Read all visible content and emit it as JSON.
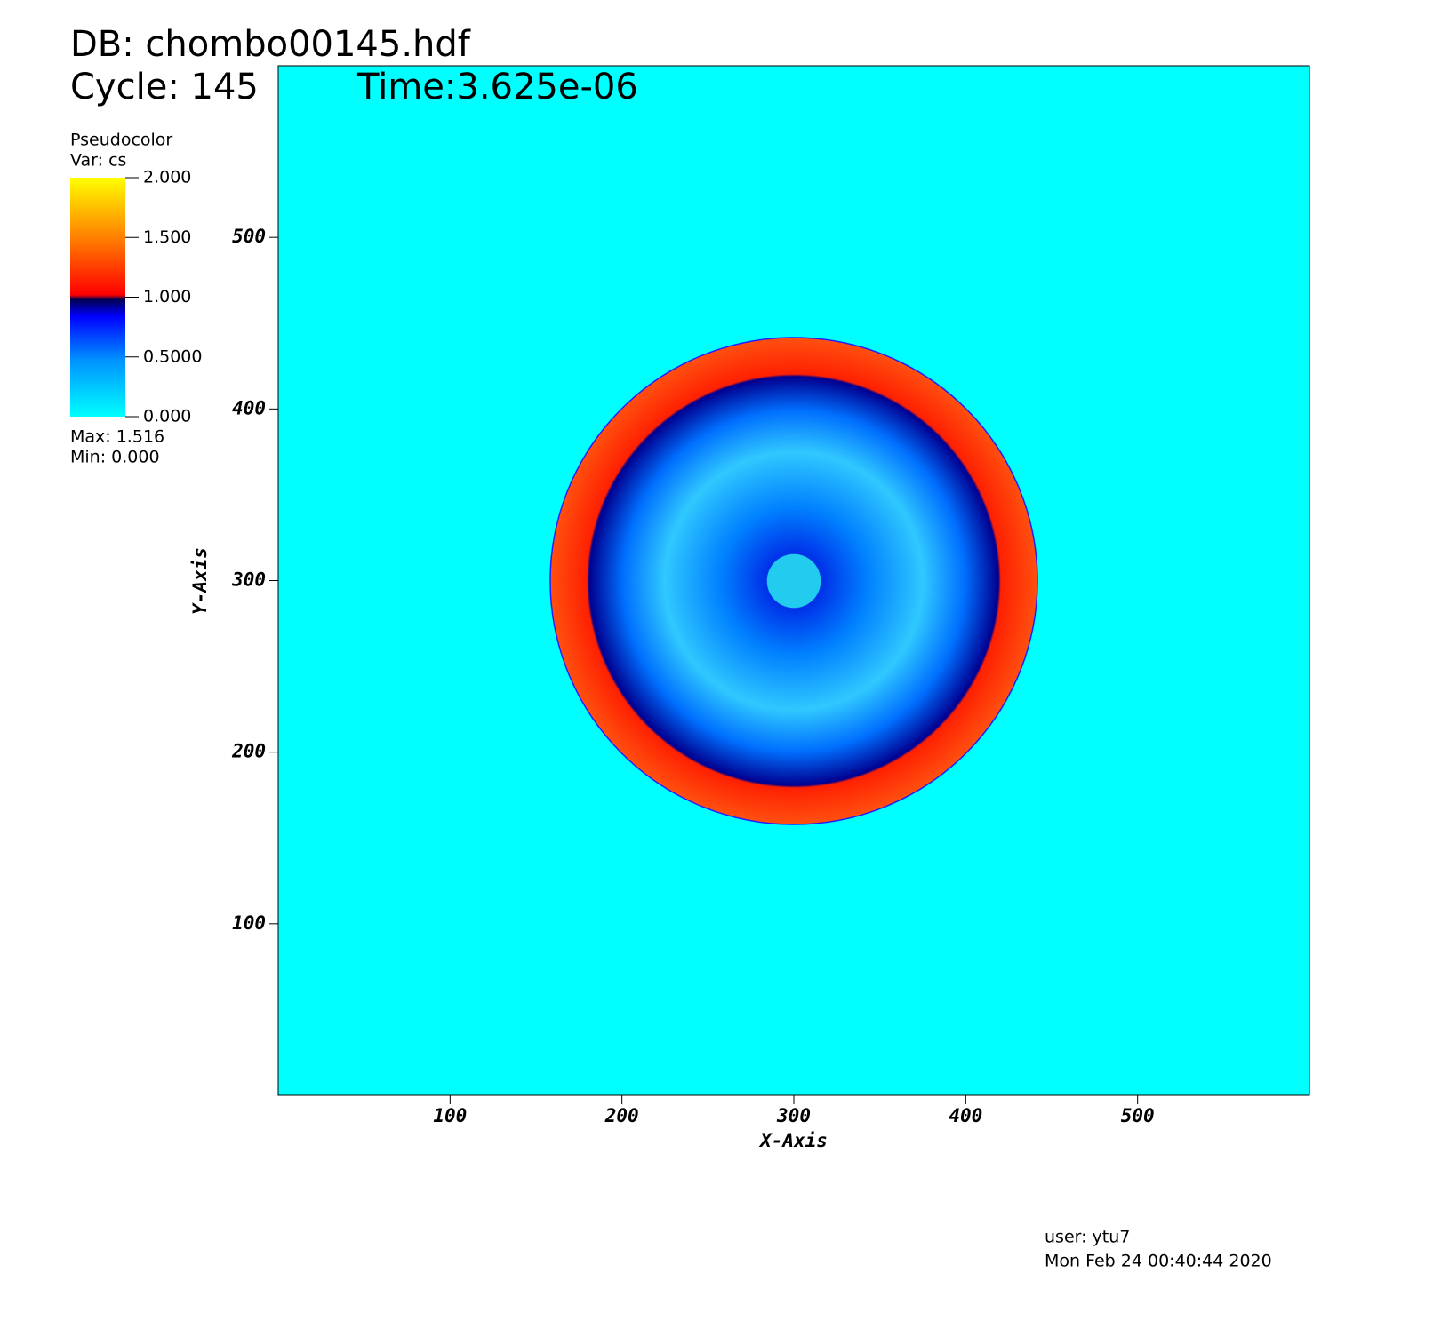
{
  "header": {
    "db": "DB: chombo00145.hdf",
    "cycle": "Cycle: 145",
    "time": "Time:3.625e-06"
  },
  "legend": {
    "plot": "Pseudocolor",
    "var": "Var: cs",
    "max": "Max:  1.516",
    "min": "Min:  0.000",
    "ticks": [
      {
        "value": 2,
        "label": "2.000"
      },
      {
        "value": 1.5,
        "label": "1.500"
      },
      {
        "value": 1,
        "label": "1.000"
      },
      {
        "value": 0.5,
        "label": "0.5000"
      },
      {
        "value": 0,
        "label": "0.000"
      }
    ],
    "lim": [
      0,
      2
    ]
  },
  "chart_data": {
    "type": "pseudocolor",
    "xlabel": "X-Axis",
    "ylabel": "Y-Axis",
    "xlim": [
      0,
      600
    ],
    "ylim": [
      0,
      600
    ],
    "xticks": [
      100,
      200,
      300,
      400,
      500
    ],
    "yticks": [
      100,
      200,
      300,
      400,
      500
    ]
  },
  "footer": {
    "user": "user: ytu7",
    "date": "Mon Feb 24 00:40:44 2020"
  }
}
